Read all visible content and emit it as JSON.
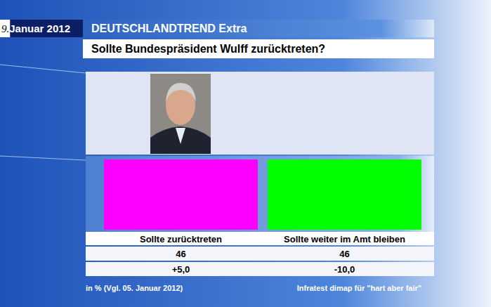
{
  "chart_data": {
    "type": "bar",
    "date": "9.Januar 2012",
    "header": "DEUTSCHLANDTREND Extra",
    "title": "Sollte Bundespräsident Wulff zurücktreten?",
    "categories": [
      "Sollte zurücktreten",
      "Sollte weiter im Amt bleiben"
    ],
    "values": [
      46,
      46
    ],
    "colors": [
      "#ff00ff",
      "#00ff00"
    ],
    "changes": [
      5.0,
      -10.0
    ],
    "change_labels": [
      "+5,0",
      "-10,0"
    ],
    "data_labels": true,
    "tick_labels": false,
    "note": "in % (Vgl. 05. Januar 2012)",
    "source": "Infratest dimap für \"hart aber fair\""
  }
}
